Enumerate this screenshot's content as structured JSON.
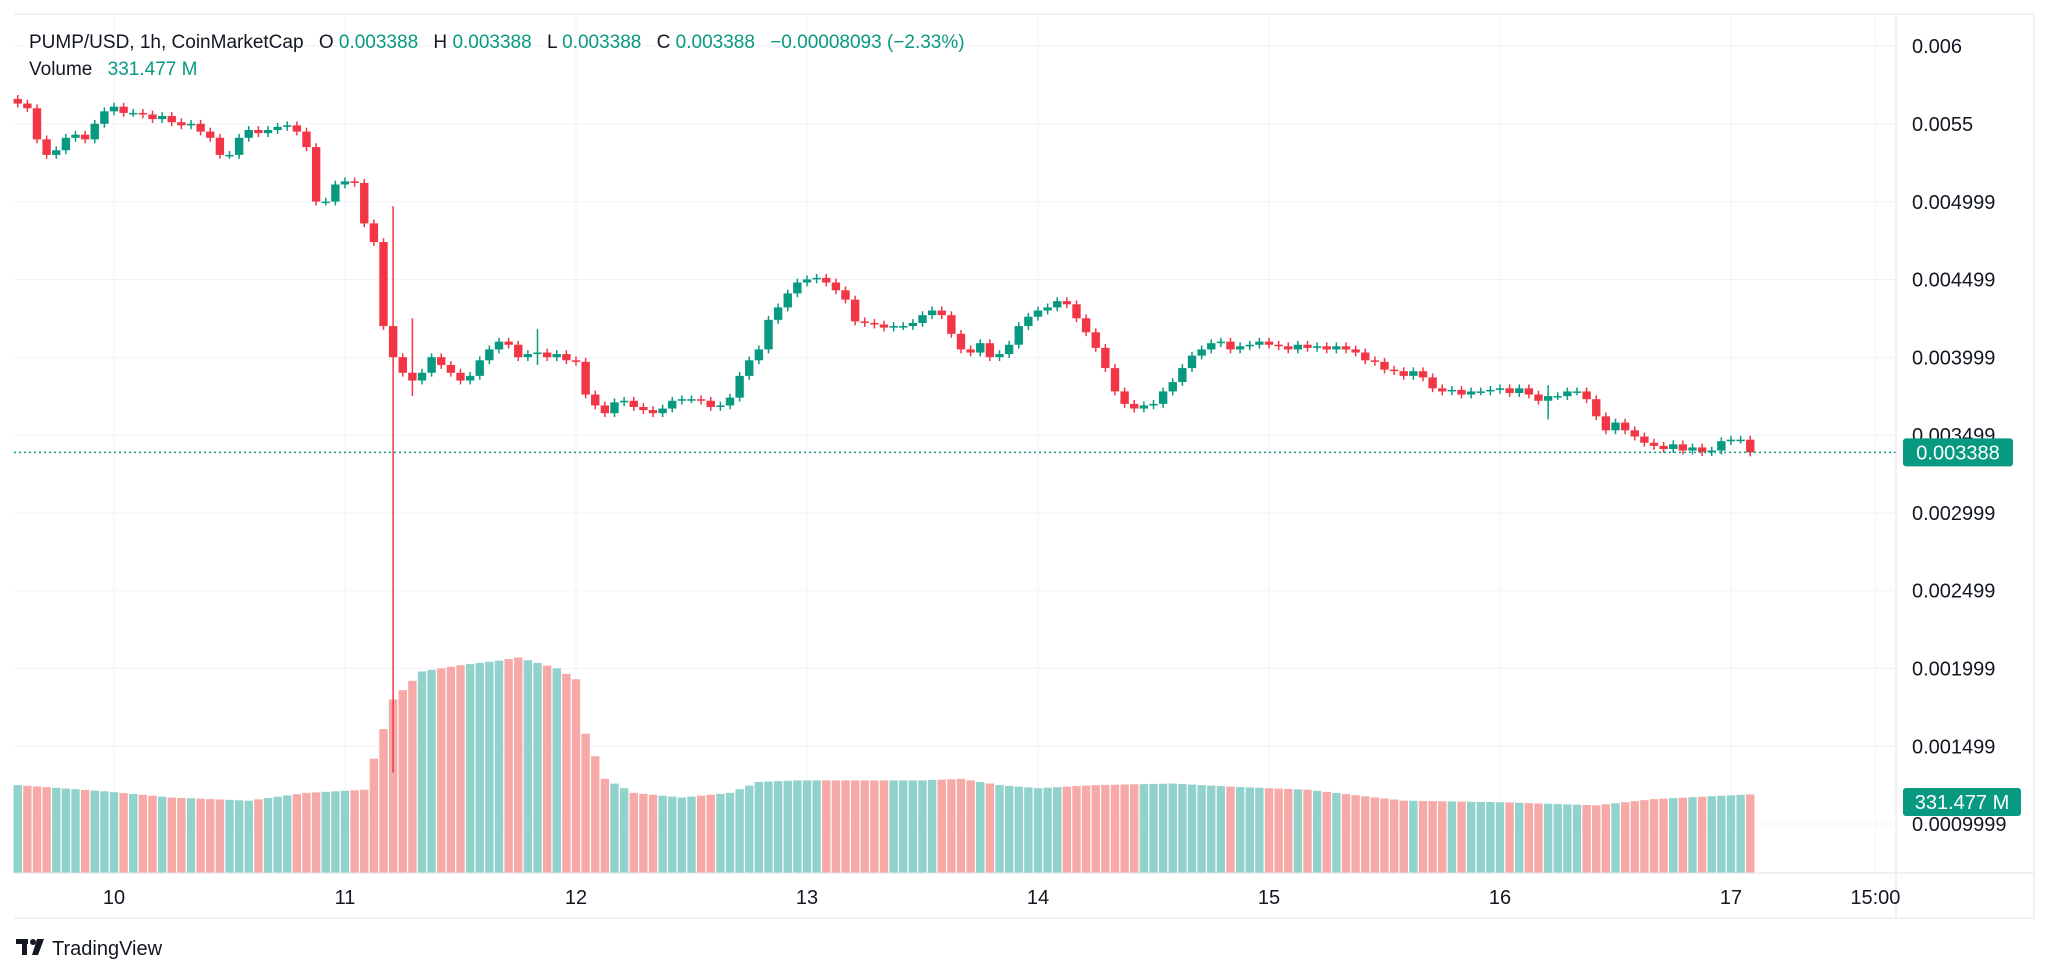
{
  "header": {
    "symbol_line": "PUMP/USD, 1h, CoinMarketCap",
    "o_label": "O",
    "o_value": "0.003388",
    "h_label": "H",
    "h_value": "0.003388",
    "l_label": "L",
    "l_value": "0.003388",
    "c_label": "C",
    "c_value": "0.003388",
    "change": "−0.00008093 (−2.33%)",
    "volume_label": "Volume",
    "volume_value": "331.477 M"
  },
  "price_badge": "0.003388",
  "volume_badge": "331.477 M",
  "brand": "TradingView",
  "colors": {
    "up": "#089981",
    "down": "#f23645",
    "up_volume": "#92d2cc",
    "down_volume": "#f7a9a7",
    "grid": "#f0f3fa",
    "text": "#131722"
  },
  "chart_data": {
    "type": "candlestick",
    "title": "PUMP/USD, 1h, CoinMarketCap",
    "y_ticks": [
      "0.006",
      "0.0055",
      "0.004999",
      "0.004499",
      "0.003999",
      "0.003499",
      "0.002999",
      "0.002499",
      "0.001999",
      "0.001499",
      "0.0009999"
    ],
    "y_tick_values": [
      0.006,
      0.0055,
      0.004999,
      0.004499,
      0.003999,
      0.003499,
      0.002999,
      0.002499,
      0.001999,
      0.001499,
      0.0009999
    ],
    "x_ticks": [
      "10",
      "11",
      "12",
      "13",
      "14",
      "15",
      "16",
      "17",
      "15:00"
    ],
    "x_tick_hours": [
      16,
      40,
      64,
      88,
      112,
      136,
      160,
      184,
      199
    ],
    "start_hour": 6,
    "y_range": [
      0.00045,
      0.0061
    ],
    "last_price": 0.003388,
    "close_path": [
      [
        6,
        0.00563
      ],
      [
        7,
        0.0056
      ],
      [
        8,
        0.0054
      ],
      [
        9,
        0.0053
      ],
      [
        10,
        0.00533
      ],
      [
        11,
        0.00541
      ],
      [
        12,
        0.00543
      ],
      [
        13,
        0.0054
      ],
      [
        14,
        0.0055
      ],
      [
        15,
        0.00558
      ],
      [
        16,
        0.00561
      ],
      [
        17,
        0.00557
      ],
      [
        18,
        0.00557
      ],
      [
        19,
        0.00556
      ],
      [
        20,
        0.00553
      ],
      [
        21,
        0.00555
      ],
      [
        22,
        0.00551
      ],
      [
        23,
        0.00549
      ],
      [
        24,
        0.0055
      ],
      [
        25,
        0.00545
      ],
      [
        26,
        0.00541
      ],
      [
        27,
        0.0053
      ],
      [
        28,
        0.0053
      ],
      [
        29,
        0.00541
      ],
      [
        30,
        0.00546
      ],
      [
        31,
        0.00544
      ],
      [
        32,
        0.00546
      ],
      [
        33,
        0.00548
      ],
      [
        34,
        0.00549
      ],
      [
        35,
        0.00545
      ],
      [
        36,
        0.00535
      ],
      [
        37,
        0.005
      ],
      [
        38,
        0.005
      ],
      [
        39,
        0.00511
      ],
      [
        40,
        0.00513
      ],
      [
        41,
        0.00512
      ],
      [
        42,
        0.00486
      ],
      [
        43,
        0.00474
      ],
      [
        44,
        0.0042
      ],
      [
        45,
        0.004
      ],
      [
        46,
        0.0039
      ],
      [
        47,
        0.00385
      ],
      [
        48,
        0.0039
      ],
      [
        49,
        0.004
      ],
      [
        50,
        0.00395
      ],
      [
        51,
        0.0039
      ],
      [
        52,
        0.00385
      ],
      [
        53,
        0.00388
      ],
      [
        54,
        0.00398
      ],
      [
        55,
        0.00405
      ],
      [
        56,
        0.0041
      ],
      [
        57,
        0.00408
      ],
      [
        58,
        0.004
      ],
      [
        59,
        0.00402
      ],
      [
        60,
        0.00403
      ],
      [
        61,
        0.004
      ],
      [
        62,
        0.00402
      ],
      [
        63,
        0.00398
      ],
      [
        64,
        0.00397
      ],
      [
        65,
        0.00376
      ],
      [
        66,
        0.00369
      ],
      [
        67,
        0.00364
      ],
      [
        68,
        0.00371
      ],
      [
        69,
        0.00372
      ],
      [
        70,
        0.00368
      ],
      [
        71,
        0.00366
      ],
      [
        72,
        0.00364
      ],
      [
        73,
        0.00367
      ],
      [
        74,
        0.00372
      ],
      [
        75,
        0.00373
      ],
      [
        76,
        0.00373
      ],
      [
        77,
        0.00372
      ],
      [
        78,
        0.00368
      ],
      [
        79,
        0.00369
      ],
      [
        80,
        0.00374
      ],
      [
        81,
        0.00388
      ],
      [
        82,
        0.00398
      ],
      [
        83,
        0.00405
      ],
      [
        84,
        0.00424
      ],
      [
        85,
        0.00432
      ],
      [
        86,
        0.00441
      ],
      [
        87,
        0.00448
      ],
      [
        88,
        0.0045
      ],
      [
        89,
        0.00451
      ],
      [
        90,
        0.00448
      ],
      [
        91,
        0.00443
      ],
      [
        92,
        0.00437
      ],
      [
        93,
        0.00423
      ],
      [
        94,
        0.00422
      ],
      [
        95,
        0.00421
      ],
      [
        96,
        0.00419
      ],
      [
        97,
        0.0042
      ],
      [
        98,
        0.0042
      ],
      [
        99,
        0.00422
      ],
      [
        100,
        0.00427
      ],
      [
        101,
        0.0043
      ],
      [
        102,
        0.00427
      ],
      [
        103,
        0.00415
      ],
      [
        104,
        0.00405
      ],
      [
        105,
        0.00403
      ],
      [
        106,
        0.00409
      ],
      [
        107,
        0.004
      ],
      [
        108,
        0.00402
      ],
      [
        109,
        0.00408
      ],
      [
        110,
        0.0042
      ],
      [
        111,
        0.00426
      ],
      [
        112,
        0.0043
      ],
      [
        113,
        0.00432
      ],
      [
        114,
        0.00436
      ],
      [
        115,
        0.00434
      ],
      [
        116,
        0.00425
      ],
      [
        117,
        0.00416
      ],
      [
        118,
        0.00406
      ],
      [
        119,
        0.00393
      ],
      [
        120,
        0.00378
      ],
      [
        121,
        0.0037
      ],
      [
        122,
        0.00367
      ],
      [
        123,
        0.00369
      ],
      [
        124,
        0.0037
      ],
      [
        125,
        0.00378
      ],
      [
        126,
        0.00384
      ],
      [
        127,
        0.00393
      ],
      [
        128,
        0.00401
      ],
      [
        129,
        0.00405
      ],
      [
        130,
        0.00409
      ],
      [
        131,
        0.0041
      ],
      [
        132,
        0.00405
      ],
      [
        133,
        0.00407
      ],
      [
        134,
        0.00408
      ],
      [
        135,
        0.0041
      ],
      [
        136,
        0.00408
      ],
      [
        137,
        0.00407
      ],
      [
        138,
        0.00405
      ],
      [
        139,
        0.00408
      ],
      [
        140,
        0.00406
      ],
      [
        141,
        0.00407
      ],
      [
        142,
        0.00405
      ],
      [
        143,
        0.00407
      ],
      [
        144,
        0.00405
      ],
      [
        145,
        0.00403
      ],
      [
        146,
        0.00398
      ],
      [
        147,
        0.00397
      ],
      [
        148,
        0.00392
      ],
      [
        149,
        0.00391
      ],
      [
        150,
        0.00388
      ],
      [
        151,
        0.00391
      ],
      [
        152,
        0.00387
      ],
      [
        153,
        0.0038
      ],
      [
        154,
        0.00378
      ],
      [
        155,
        0.00379
      ],
      [
        156,
        0.00376
      ],
      [
        157,
        0.00378
      ],
      [
        158,
        0.00378
      ],
      [
        159,
        0.00379
      ],
      [
        160,
        0.0038
      ],
      [
        161,
        0.00377
      ],
      [
        162,
        0.0038
      ],
      [
        163,
        0.00376
      ],
      [
        164,
        0.00372
      ],
      [
        165,
        0.00375
      ],
      [
        166,
        0.00375
      ],
      [
        167,
        0.00378
      ],
      [
        168,
        0.00378
      ],
      [
        169,
        0.00373
      ],
      [
        170,
        0.00362
      ],
      [
        171,
        0.00353
      ],
      [
        172,
        0.00358
      ],
      [
        173,
        0.00353
      ],
      [
        174,
        0.00349
      ],
      [
        175,
        0.00345
      ],
      [
        176,
        0.00343
      ],
      [
        177,
        0.00341
      ],
      [
        178,
        0.00344
      ],
      [
        179,
        0.0034
      ],
      [
        180,
        0.00342
      ],
      [
        181,
        0.00339
      ],
      [
        182,
        0.0034
      ],
      [
        183,
        0.00346
      ],
      [
        184,
        0.00347
      ],
      [
        185,
        0.00347
      ],
      [
        186,
        0.003388
      ]
    ],
    "spikes": [
      {
        "hour": 45,
        "low": 0.00133,
        "high": 0.00497
      },
      {
        "hour": 47,
        "low": 0.00375,
        "high": 0.00425
      },
      {
        "hour": 60,
        "low": 0.00395,
        "high": 0.00418
      },
      {
        "hour": 165,
        "low": 0.0036,
        "high": 0.00382
      }
    ],
    "volume_path": [
      [
        6,
        0.00125
      ],
      [
        15,
        0.00121
      ],
      [
        22,
        0.00117
      ],
      [
        30,
        0.00115
      ],
      [
        36,
        0.0012
      ],
      [
        42,
        0.00122
      ],
      [
        43,
        0.00142
      ],
      [
        45,
        0.0018
      ],
      [
        48,
        0.00198
      ],
      [
        52,
        0.00202
      ],
      [
        56,
        0.00205
      ],
      [
        58,
        0.00207
      ],
      [
        62,
        0.002
      ],
      [
        64,
        0.00193
      ],
      [
        65,
        0.00158
      ],
      [
        67,
        0.00129
      ],
      [
        70,
        0.0012
      ],
      [
        75,
        0.00117
      ],
      [
        80,
        0.0012
      ],
      [
        83,
        0.00127
      ],
      [
        87,
        0.00128
      ],
      [
        100,
        0.00128
      ],
      [
        104,
        0.00129
      ],
      [
        108,
        0.00125
      ],
      [
        112,
        0.00123
      ],
      [
        118,
        0.00125
      ],
      [
        126,
        0.00126
      ],
      [
        132,
        0.00124
      ],
      [
        140,
        0.00122
      ],
      [
        150,
        0.00115
      ],
      [
        160,
        0.00114
      ],
      [
        170,
        0.00112
      ],
      [
        176,
        0.00116
      ],
      [
        186,
        0.00119
      ]
    ]
  }
}
